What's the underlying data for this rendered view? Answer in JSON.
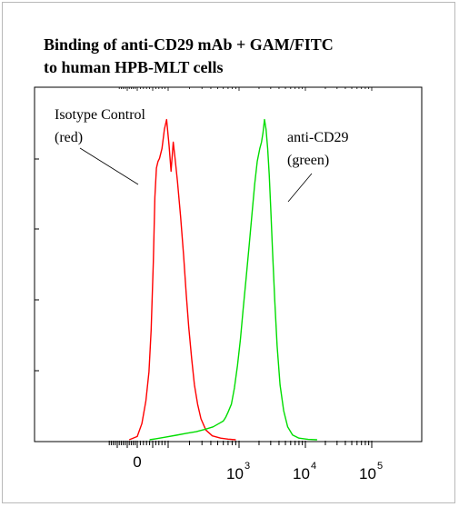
{
  "title_lines": [
    "Binding of anti-CD29 mAb + GAM/FITC",
    "to human HPB-MLT cells"
  ],
  "chart_data": {
    "type": "line",
    "title": "Binding of anti-CD29 mAb + GAM/FITC to human HPB-MLT cells",
    "xlabel": "",
    "ylabel": "",
    "x_scale": "logicle",
    "xlim": [
      -150,
      150000
    ],
    "ylim": [
      0,
      1
    ],
    "grid": false,
    "x_ticks": [
      {
        "value": 0,
        "base": "0",
        "exp": ""
      },
      {
        "value": 1000,
        "base": "10",
        "exp": "3"
      },
      {
        "value": 10000,
        "base": "10",
        "exp": "4"
      },
      {
        "value": 100000,
        "base": "10",
        "exp": "5"
      }
    ],
    "series": [
      {
        "color": "#ff0000",
        "x": [
          -40,
          0,
          15,
          28,
          38,
          45,
          52,
          57,
          62,
          67,
          72,
          80,
          88,
          95,
          103,
          110,
          118,
          125,
          135,
          150,
          165,
          180,
          195,
          215,
          235,
          260,
          290,
          340,
          420,
          550,
          700,
          900
        ],
        "y": [
          0.0,
          0.01,
          0.05,
          0.12,
          0.21,
          0.34,
          0.55,
          0.75,
          0.84,
          0.86,
          0.87,
          0.9,
          0.96,
          0.99,
          0.91,
          0.83,
          0.92,
          0.87,
          0.8,
          0.69,
          0.57,
          0.45,
          0.35,
          0.25,
          0.17,
          0.11,
          0.065,
          0.03,
          0.012,
          0.005,
          0.002,
          0.0
        ]
      },
      {
        "color": "#00dd00",
        "x": [
          40,
          60,
          90,
          130,
          180,
          250,
          330,
          430,
          520,
          600,
          650,
          700,
          780,
          860,
          950,
          1050,
          1150,
          1280,
          1420,
          1570,
          1720,
          1880,
          2050,
          2180,
          2300,
          2420,
          2550,
          2700,
          2850,
          3000,
          3200,
          3450,
          3750,
          4150,
          4700,
          5400,
          6400,
          8000,
          11000,
          15000
        ],
        "y": [
          0.0,
          0.003,
          0.008,
          0.014,
          0.02,
          0.025,
          0.032,
          0.04,
          0.05,
          0.058,
          0.07,
          0.085,
          0.11,
          0.16,
          0.23,
          0.31,
          0.4,
          0.5,
          0.6,
          0.7,
          0.79,
          0.86,
          0.9,
          0.92,
          0.95,
          0.99,
          0.96,
          0.9,
          0.82,
          0.72,
          0.58,
          0.43,
          0.29,
          0.17,
          0.09,
          0.04,
          0.015,
          0.005,
          0.001,
          0.0
        ]
      }
    ],
    "annotations": [
      {
        "lines": [
          "Isotype Control",
          "(red)"
        ]
      },
      {
        "lines": [
          "anti-CD29",
          "(green)"
        ]
      }
    ]
  }
}
